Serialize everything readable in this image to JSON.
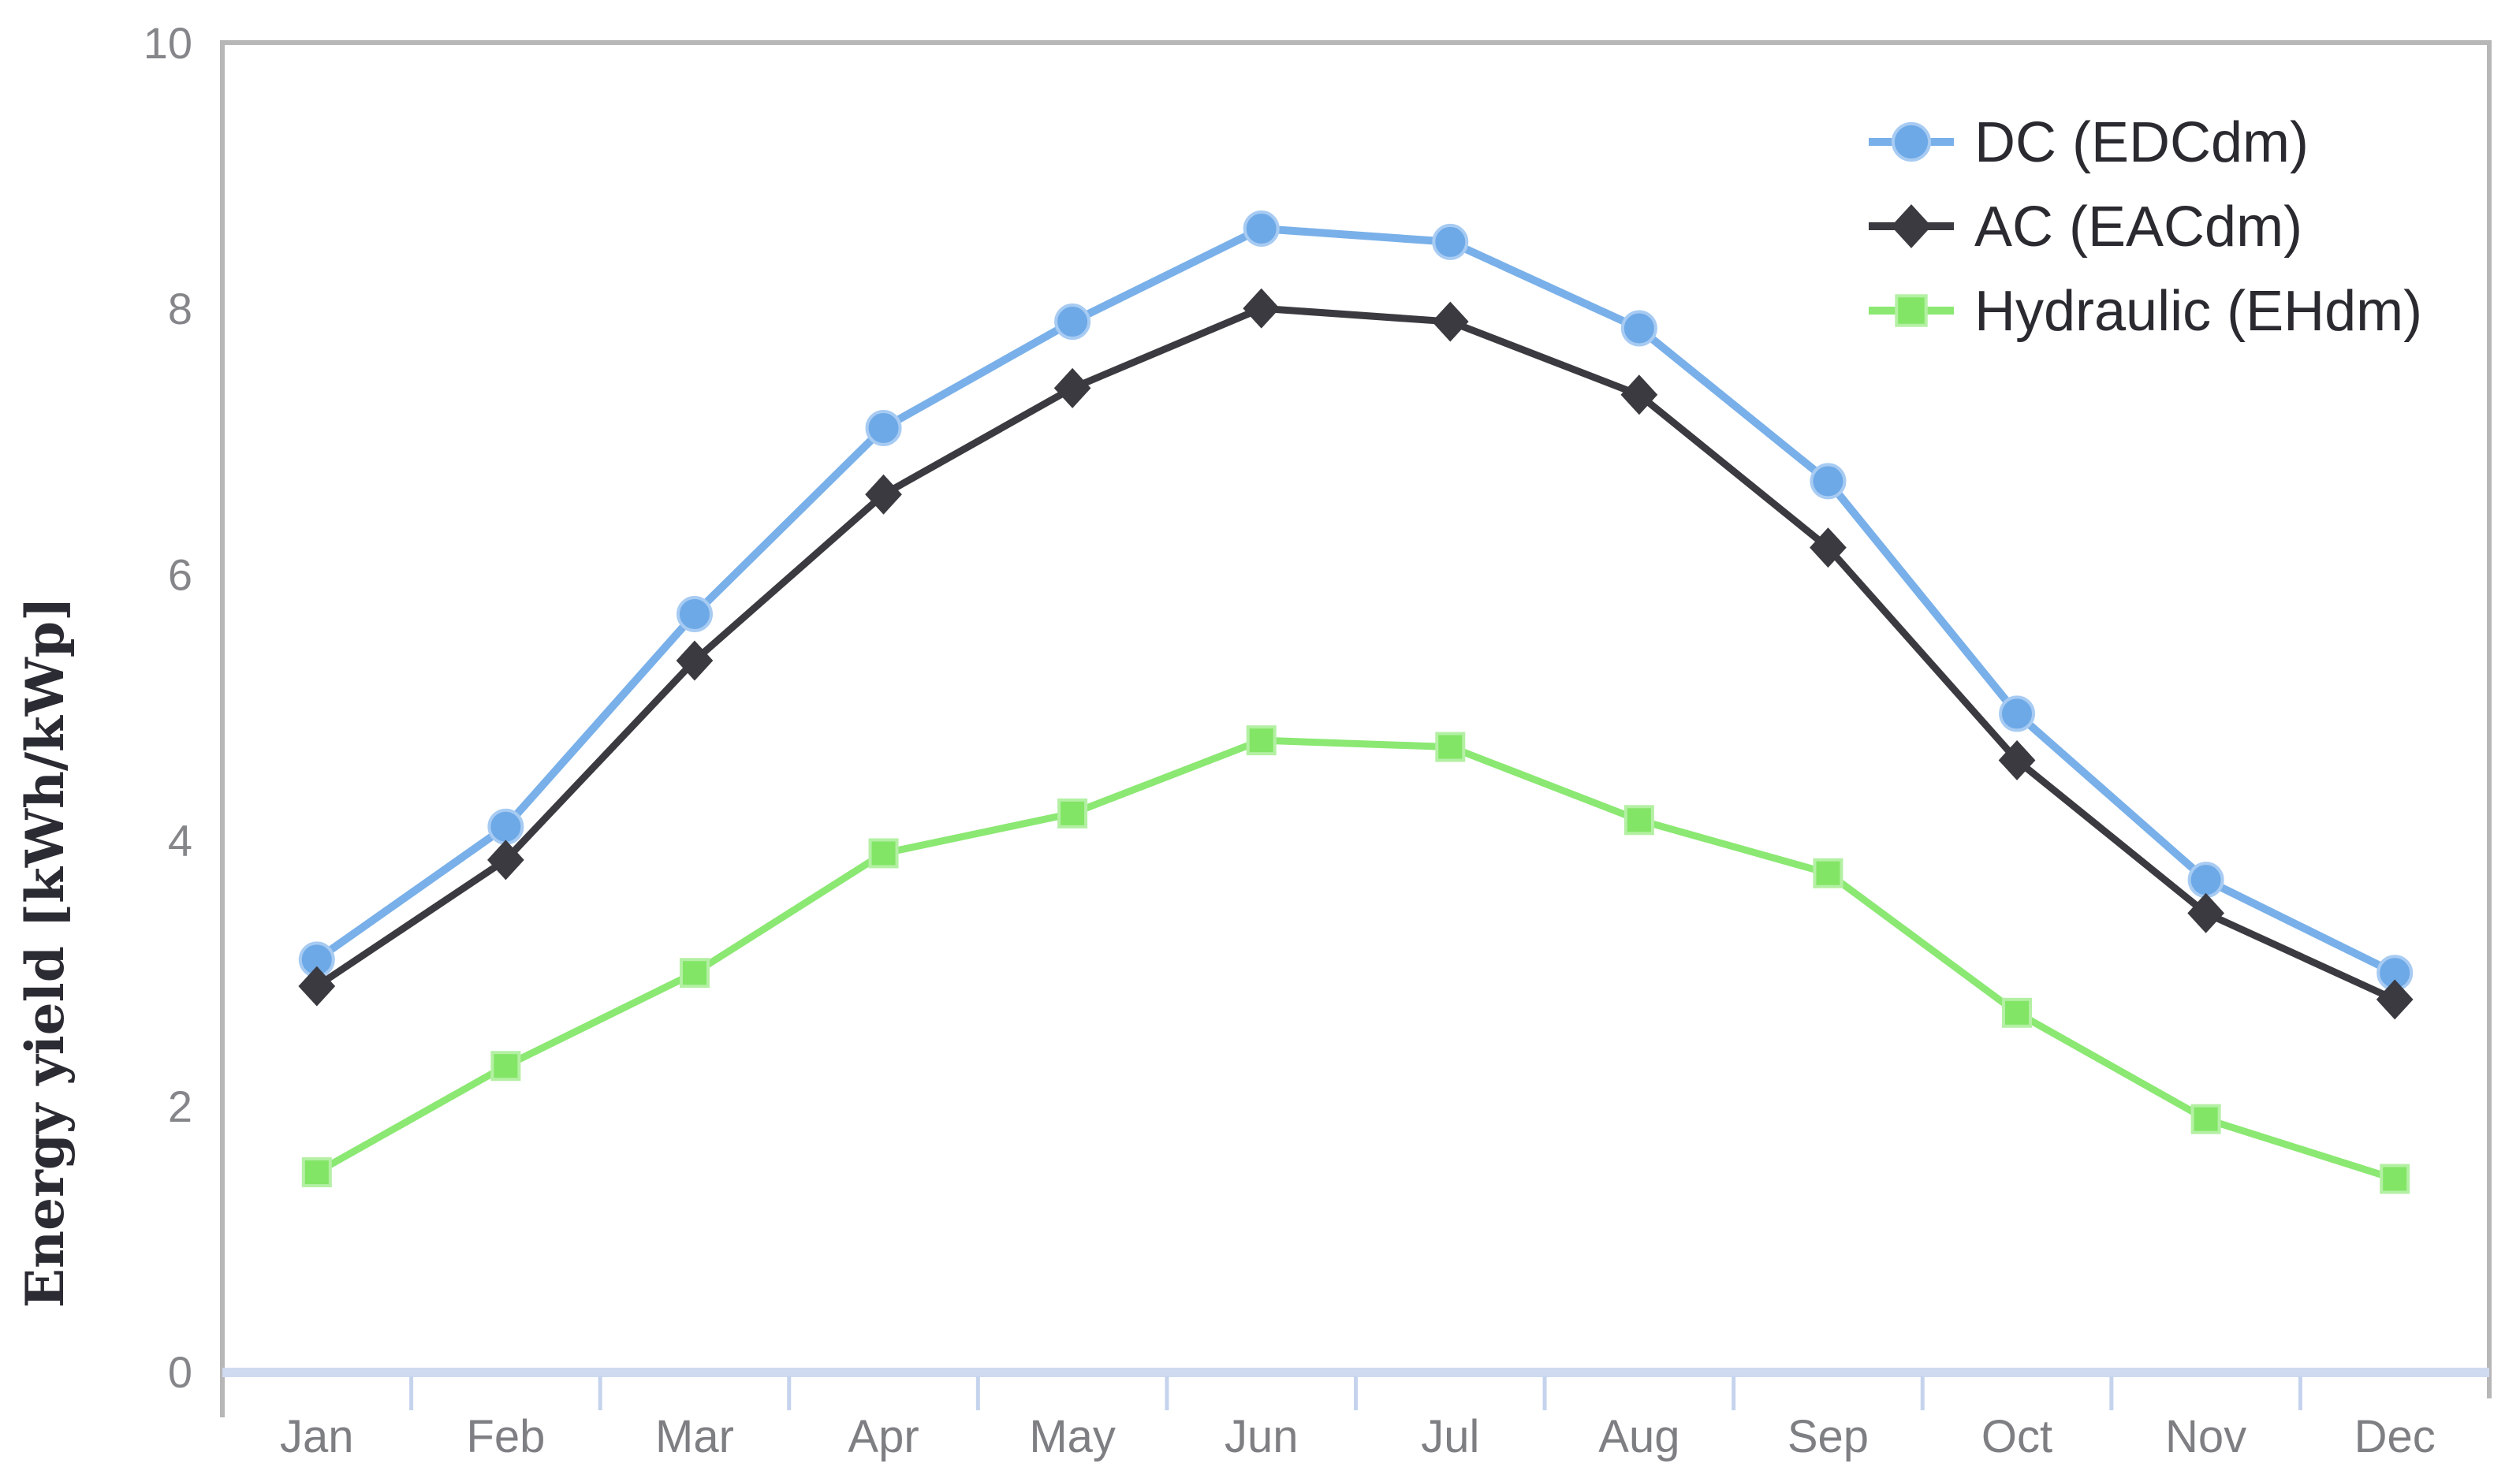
{
  "chart_data": {
    "type": "line",
    "title": "",
    "xlabel": "",
    "ylabel": "Energy yield [kWh/kWp]",
    "ylim": [
      0,
      10
    ],
    "yticks": [
      0,
      2,
      4,
      6,
      8,
      10
    ],
    "grid": false,
    "legend_position": "top-right",
    "categories": [
      "Jan",
      "Feb",
      "Mar",
      "Apr",
      "May",
      "Jun",
      "Jul",
      "Aug",
      "Sep",
      "Oct",
      "Nov",
      "Dec"
    ],
    "series": [
      {
        "id": "dc",
        "name": "DC (EDCdm)",
        "marker": "circle",
        "line_color": "#79b0e9",
        "marker_color": "#6ea9e7",
        "marker_edge": "#a7cbf2",
        "values": [
          3.1,
          4.1,
          5.7,
          7.1,
          7.9,
          8.6,
          8.5,
          7.85,
          6.7,
          4.95,
          3.7,
          3.0
        ]
      },
      {
        "id": "ac",
        "name": "AC (EACdm)",
        "marker": "diamond",
        "line_color": "#3a3a40",
        "marker_color": "#3a3a40",
        "marker_edge": "#3a3a40",
        "values": [
          2.9,
          3.85,
          5.35,
          6.6,
          7.4,
          8.0,
          7.9,
          7.35,
          6.2,
          4.6,
          3.45,
          2.8
        ]
      },
      {
        "id": "hydraulic",
        "name": "Hydraulic (EHdm)",
        "marker": "square",
        "line_color": "#8be872",
        "marker_color": "#82e566",
        "marker_edge": "#b4f0a4",
        "values": [
          1.5,
          2.3,
          3.0,
          3.9,
          4.2,
          4.75,
          4.7,
          4.15,
          3.75,
          2.7,
          1.9,
          1.45
        ]
      }
    ]
  },
  "colors": {
    "background": "#ffffff",
    "plot_border": "#b7b7b7",
    "xaxis_band": "#cfdaf0",
    "xaxis_tick": "#c5d3ed",
    "ytick_label": "#85868a",
    "xtick_label": "#7e7f83",
    "yaxis_title": "#2b2b33",
    "legend_text": "#2a2a30"
  }
}
